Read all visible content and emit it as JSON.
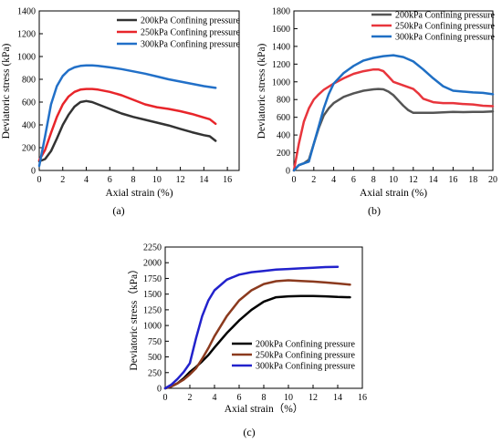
{
  "chart_data": [
    {
      "type": "line",
      "panel_label": "(a)",
      "xlabel": "Axial strain (%)",
      "ylabel": "Deviatoric stress (kPa)",
      "xlim": [
        0,
        17
      ],
      "ylim": [
        0,
        1400
      ],
      "xticks": [
        0,
        2,
        4,
        6,
        8,
        10,
        12,
        14,
        16
      ],
      "yticks": [
        0,
        200,
        400,
        600,
        800,
        1000,
        1200,
        1400
      ],
      "legend_position": "top-right",
      "grid": false,
      "series": [
        {
          "name": "200kPa Confining pressure",
          "color": "#333333",
          "x": [
            0,
            0.5,
            1,
            1.5,
            2,
            2.5,
            3,
            3.5,
            4,
            4.5,
            5,
            6,
            7,
            8,
            9,
            10,
            11,
            12,
            13,
            14,
            14.5,
            15
          ],
          "y": [
            80,
            100,
            170,
            280,
            400,
            490,
            560,
            600,
            610,
            600,
            580,
            540,
            500,
            470,
            445,
            420,
            395,
            365,
            335,
            310,
            300,
            260
          ]
        },
        {
          "name": "250kPa Confining pressure",
          "color": "#e8252a",
          "x": [
            0,
            0.5,
            1,
            1.5,
            2,
            2.5,
            3,
            3.5,
            4,
            4.5,
            5,
            6,
            7,
            8,
            9,
            10,
            11,
            12,
            13,
            14,
            14.5,
            15
          ],
          "y": [
            90,
            180,
            330,
            470,
            580,
            650,
            690,
            710,
            715,
            715,
            710,
            690,
            660,
            620,
            580,
            555,
            540,
            520,
            495,
            465,
            450,
            410
          ]
        },
        {
          "name": "300kPa Confining pressure",
          "color": "#2270c8",
          "x": [
            0,
            0.5,
            1,
            1.5,
            2,
            2.5,
            3,
            3.5,
            4,
            4.5,
            5,
            6,
            7,
            8,
            9,
            10,
            11,
            12,
            13,
            14,
            15
          ],
          "y": [
            40,
            300,
            580,
            740,
            830,
            880,
            905,
            918,
            922,
            922,
            918,
            905,
            890,
            870,
            850,
            825,
            800,
            780,
            760,
            740,
            725
          ]
        }
      ]
    },
    {
      "type": "line",
      "panel_label": "(b)",
      "xlabel": "Axial strain (%)",
      "ylabel": "Deviatoric stress (kPa)",
      "xlim": [
        0,
        20
      ],
      "ylim": [
        0,
        1800
      ],
      "xticks": [
        0,
        2,
        4,
        6,
        8,
        10,
        12,
        14,
        16,
        18,
        20
      ],
      "yticks": [
        0,
        200,
        400,
        600,
        800,
        1000,
        1200,
        1400,
        1600,
        1800
      ],
      "legend_position": "top-right",
      "grid": false,
      "series": [
        {
          "name": "200kPa Confining pressure",
          "color": "#555555",
          "x": [
            0,
            0.5,
            1,
            1.5,
            2,
            2.5,
            3,
            3.5,
            4,
            5,
            6,
            7,
            8,
            8.5,
            9,
            9.5,
            10,
            10.5,
            11,
            11.5,
            12,
            13,
            14,
            15,
            16,
            17,
            18,
            19,
            20
          ],
          "y": [
            0,
            60,
            80,
            120,
            300,
            480,
            620,
            700,
            760,
            830,
            870,
            900,
            915,
            920,
            915,
            890,
            850,
            790,
            730,
            680,
            650,
            650,
            650,
            655,
            660,
            658,
            660,
            660,
            665
          ]
        },
        {
          "name": "250kPa Confining pressure",
          "color": "#e8353c",
          "x": [
            0,
            0.5,
            1,
            1.5,
            2,
            2.5,
            3,
            4,
            5,
            6,
            7,
            8,
            8.5,
            9,
            9.5,
            10,
            11,
            12,
            12.5,
            13,
            14,
            15,
            16,
            17,
            18,
            19,
            20
          ],
          "y": [
            0,
            300,
            550,
            700,
            800,
            860,
            910,
            980,
            1040,
            1090,
            1120,
            1140,
            1140,
            1120,
            1060,
            1000,
            960,
            920,
            870,
            810,
            770,
            760,
            760,
            750,
            745,
            730,
            725
          ]
        },
        {
          "name": "300kPa Confining pressure",
          "color": "#1f6fc4",
          "x": [
            0,
            0.5,
            1,
            1.5,
            2,
            2.5,
            3,
            3.5,
            4,
            5,
            6,
            7,
            8,
            9,
            10,
            11,
            12,
            13,
            14,
            15,
            16,
            17,
            18,
            19,
            20
          ],
          "y": [
            0,
            60,
            80,
            100,
            300,
            500,
            700,
            860,
            980,
            1100,
            1180,
            1240,
            1270,
            1290,
            1300,
            1280,
            1230,
            1140,
            1040,
            950,
            900,
            890,
            880,
            875,
            860
          ]
        }
      ]
    },
    {
      "type": "line",
      "panel_label": "(c)",
      "xlabel": "Axial strain（%）",
      "ylabel": "Deviatoric stress（kPa）",
      "xlim": [
        0,
        16
      ],
      "ylim": [
        0,
        2250
      ],
      "xticks": [
        0,
        2,
        4,
        6,
        8,
        10,
        12,
        14,
        16
      ],
      "yticks": [
        0,
        250,
        500,
        750,
        1000,
        1250,
        1500,
        1750,
        2000,
        2250
      ],
      "legend_position": "bottom-right",
      "grid": false,
      "series": [
        {
          "name": "200kPa Confining pressure",
          "color": "#000000",
          "x": [
            0,
            0.5,
            1,
            1.5,
            2,
            2.5,
            3,
            3.5,
            4,
            5,
            6,
            7,
            8,
            9,
            10,
            11,
            12,
            13,
            14,
            15
          ],
          "y": [
            0,
            30,
            80,
            160,
            260,
            340,
            430,
            530,
            650,
            880,
            1080,
            1250,
            1380,
            1450,
            1465,
            1470,
            1470,
            1465,
            1455,
            1450
          ]
        },
        {
          "name": "250kPa Confining pressure",
          "color": "#8b3a1e",
          "x": [
            0,
            0.5,
            1,
            1.5,
            2,
            2.5,
            3,
            3.5,
            4,
            5,
            6,
            7,
            8,
            9,
            10,
            11,
            12,
            13,
            14,
            15
          ],
          "y": [
            0,
            30,
            80,
            140,
            220,
            320,
            470,
            640,
            830,
            1150,
            1400,
            1560,
            1660,
            1705,
            1720,
            1710,
            1700,
            1685,
            1670,
            1650
          ]
        },
        {
          "name": "300kPa Confining pressure",
          "color": "#2222cc",
          "x": [
            0,
            0.5,
            1,
            1.5,
            2,
            2.5,
            3,
            3.5,
            4,
            5,
            6,
            7,
            8,
            9,
            10,
            11,
            12,
            13,
            14
          ],
          "y": [
            0,
            60,
            150,
            260,
            400,
            800,
            1150,
            1400,
            1560,
            1730,
            1810,
            1850,
            1870,
            1890,
            1900,
            1910,
            1920,
            1930,
            1935
          ]
        }
      ]
    }
  ]
}
